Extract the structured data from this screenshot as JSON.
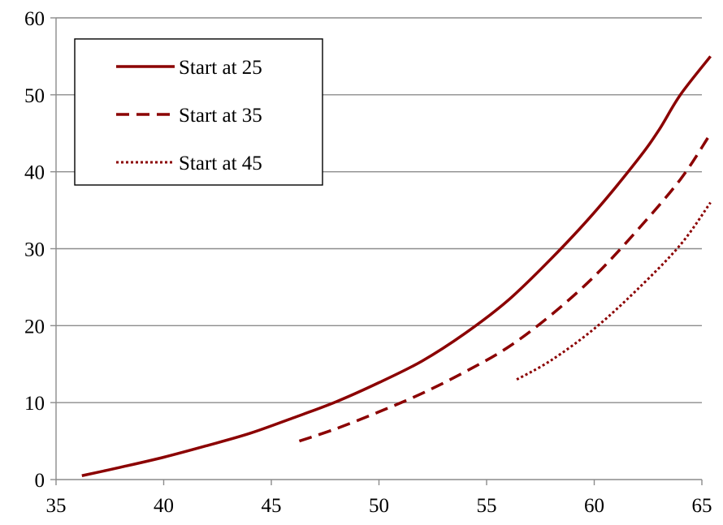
{
  "chart_data": {
    "type": "line",
    "title": "",
    "xlabel": "",
    "ylabel": "",
    "xlim": [
      35,
      65
    ],
    "ylim": [
      0,
      60
    ],
    "x_ticks": [
      35,
      40,
      45,
      50,
      55,
      60,
      65
    ],
    "y_ticks": [
      0,
      10,
      20,
      30,
      40,
      50,
      60
    ],
    "x_tick_labels": [
      "35",
      "40",
      "45",
      "50",
      "55",
      "60",
      "65"
    ],
    "y_tick_labels": [
      "0",
      "10",
      "20",
      "30",
      "40",
      "50",
      "60"
    ],
    "grid": "horizontal",
    "legend_position": "top-left",
    "colors": {
      "series": "#8b0000",
      "grid": "#8c8c8c",
      "axis": "#8c8c8c"
    },
    "series": [
      {
        "name": "Start at 25",
        "style": "solid",
        "points": [
          [
            36.2,
            0.5
          ],
          [
            38,
            1.6
          ],
          [
            40,
            2.9
          ],
          [
            42,
            4.4
          ],
          [
            44,
            6.0
          ],
          [
            46,
            8.0
          ],
          [
            48,
            10.1
          ],
          [
            50,
            12.6
          ],
          [
            52,
            15.4
          ],
          [
            54,
            19.0
          ],
          [
            56,
            23.3
          ],
          [
            58,
            28.7
          ],
          [
            60,
            34.7
          ],
          [
            62,
            41.5
          ],
          [
            63,
            45.4
          ],
          [
            64,
            50.0
          ],
          [
            65.4,
            55.0
          ]
        ]
      },
      {
        "name": "Start at 35",
        "style": "dashed",
        "points": [
          [
            46.3,
            5.0
          ],
          [
            48,
            6.6
          ],
          [
            50,
            8.8
          ],
          [
            52,
            11.2
          ],
          [
            54,
            14.0
          ],
          [
            56,
            17.2
          ],
          [
            58,
            21.4
          ],
          [
            60,
            26.4
          ],
          [
            62,
            32.4
          ],
          [
            64,
            39.0
          ],
          [
            65.3,
            44.5
          ]
        ]
      },
      {
        "name": "Start at 45",
        "style": "dotted",
        "points": [
          [
            56.4,
            13.0
          ],
          [
            58,
            15.5
          ],
          [
            60,
            19.6
          ],
          [
            62,
            24.7
          ],
          [
            64,
            30.5
          ],
          [
            65.4,
            36.0
          ]
        ]
      }
    ]
  }
}
